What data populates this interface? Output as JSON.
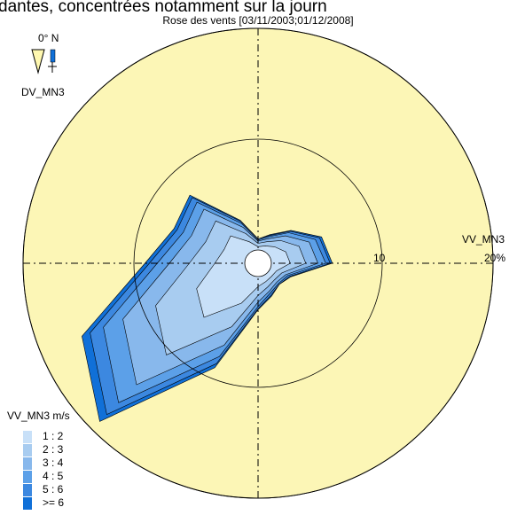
{
  "chart_data": {
    "type": "windrose",
    "caption": "dantes, concentrées notamment sur la journ",
    "title": "Rose des vents [03/11/2003;01/12/2008]",
    "north_label": "0° N",
    "direction_label": "DV_MN3",
    "radial_label": "VV_MN3",
    "legend_title": "VV_MN3 m/s",
    "categories": [
      null,
      null,
      null,
      null,
      null,
      null,
      null,
      null,
      null,
      null,
      null,
      null,
      null,
      null,
      null,
      null
    ],
    "rlim": [
      0,
      20
    ],
    "rticks": [
      10,
      {
        "value": 20,
        "label": "20%"
      }
    ],
    "series": [
      {
        "name": "1 : 2",
        "color": "#c8e0f8",
        "values": [
          0.3,
          0.5,
          0.9,
          1.5,
          1.7,
          0.6,
          0.5,
          0.6,
          0.9,
          2.7,
          5.7,
          4.8,
          2.7,
          2.1,
          2.3,
          0.9
        ]
      },
      {
        "name": "2 : 3",
        "color": "#a8ccf0",
        "values": [
          0.3,
          0.4,
          0.8,
          1.3,
          1.4,
          0.5,
          0.4,
          0.5,
          0.8,
          2.3,
          4.8,
          4,
          2.3,
          1.8,
          1.9,
          0.8
        ]
      },
      {
        "name": "3 : 4",
        "color": "#88b8ec",
        "values": [
          0.2,
          0.3,
          0.6,
          1,
          1.1,
          0.4,
          0.3,
          0.4,
          0.6,
          1.8,
          3.8,
          3.2,
          1.8,
          1.4,
          1.5,
          0.6
        ]
      },
      {
        "name": "4 : 5",
        "color": "#5ca0e8",
        "values": [
          0.1,
          0.2,
          0.4,
          0.6,
          0.7,
          0.2,
          0.2,
          0.2,
          0.4,
          1.1,
          2.3,
          1.9,
          1.1,
          0.8,
          0.9,
          0.4
        ]
      },
      {
        "name": "5 : 6",
        "color": "#3c88e0",
        "values": [
          0.1,
          0.1,
          0.2,
          0.4,
          0.4,
          0.2,
          0.1,
          0.2,
          0.2,
          0.7,
          1.5,
          1.3,
          0.7,
          0.6,
          0.6,
          0.2
        ]
      },
      {
        "name": ">= 6",
        "color": "#1070d8",
        "values": [
          0,
          0.1,
          0.1,
          0.2,
          0.2,
          0.1,
          0,
          0.1,
          0.1,
          0.4,
          0.9,
          0.8,
          0.4,
          0.3,
          0.3,
          0.1
        ]
      }
    ]
  }
}
